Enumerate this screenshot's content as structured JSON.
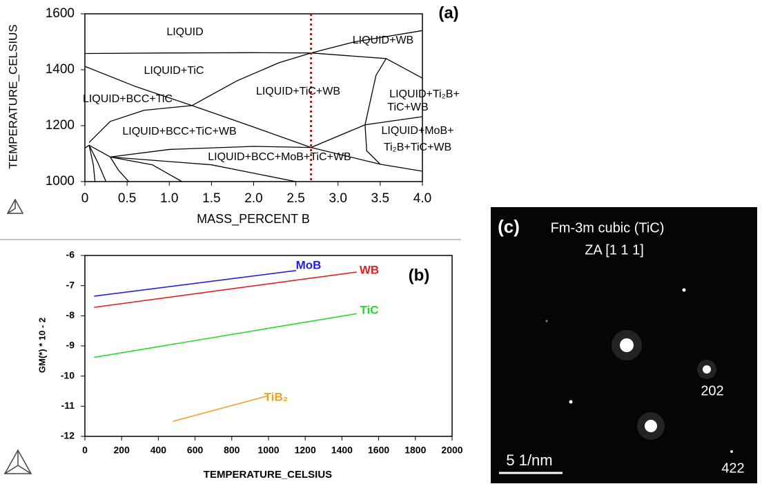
{
  "chart_data": [
    {
      "type": "line",
      "panel": "(a)",
      "x_label": "MASS_PERCENT B",
      "y_label": "TEMPERATURE_CELSIUS",
      "xlim": [
        0,
        4
      ],
      "ylim": [
        1000,
        1600
      ],
      "xticks": [
        0,
        0.5,
        {
          "value": 1,
          "label": "1.0"
        },
        1.5,
        {
          "value": 2,
          "label": "2.0"
        },
        2.5,
        {
          "value": 3,
          "label": "3.0"
        },
        3.5,
        {
          "value": 4,
          "label": "4.0"
        }
      ],
      "yticks": [
        1000,
        1200,
        1400,
        1600
      ],
      "vline": {
        "x": 2.68,
        "color": "#e00000"
      },
      "annotations": [
        "LIQUID",
        "LIQUID+WB",
        "LIQUID+TiC",
        "LIQUID+TiC+WB",
        "LIQUID+Ti₂B+",
        "TiC+WB",
        "LIQUID+BCC+TiC",
        "LIQUID+BCC+TiC+WB",
        "LIQUID+MoB+",
        "Ti₂B+TiC+WB",
        "LIQUID+BCC+MoB+TiC+WB"
      ],
      "series": [
        {
          "color": "#000000",
          "x": [
            0,
            1,
            2,
            2.68,
            3.57
          ],
          "values": [
            1458,
            1460,
            1461,
            1460,
            1440
          ]
        },
        {
          "color": "#000000",
          "x": [
            1.27,
            1.8,
            2.3,
            2.68,
            3.2,
            4
          ],
          "values": [
            1272,
            1360,
            1425,
            1460,
            1500,
            1540
          ]
        },
        {
          "color": "#000000",
          "x": [
            0,
            0.6,
            1.27
          ],
          "values": [
            1412,
            1340,
            1272
          ]
        },
        {
          "color": "#000000",
          "x": [
            1.27,
            2,
            2.68
          ],
          "values": [
            1272,
            1195,
            1122
          ]
        },
        {
          "color": "#000000",
          "x": [
            0.05,
            0.3,
            0.7,
            1.27
          ],
          "values": [
            1140,
            1215,
            1255,
            1272
          ]
        },
        {
          "color": "#000000",
          "x": [
            0.3,
            1,
            2,
            2.68
          ],
          "values": [
            1088,
            1115,
            1126,
            1122
          ]
        },
        {
          "color": "#000000",
          "x": [
            2.68,
            3.32,
            3.45,
            3.57
          ],
          "values": [
            1122,
            1203,
            1380,
            1440
          ]
        },
        {
          "color": "#000000",
          "x": [
            3.32,
            4
          ],
          "values": [
            1203,
            1232
          ]
        },
        {
          "color": "#000000",
          "x": [
            2.68,
            3.5,
            4
          ],
          "values": [
            1122,
            1062,
            1037
          ]
        },
        {
          "color": "#000000",
          "x": [
            3.32,
            3.34,
            3.5
          ],
          "values": [
            1203,
            1110,
            1062
          ]
        },
        {
          "color": "#000000",
          "x": [
            3.57,
            4
          ],
          "values": [
            1440,
            1370
          ]
        },
        {
          "color": "#000000",
          "x": [
            0.3,
            1.5,
            2.5
          ],
          "values": [
            1088,
            1060,
            1000
          ]
        },
        {
          "color": "#000000",
          "x": [
            0.3,
            0.8,
            1.15
          ],
          "values": [
            1088,
            1060,
            1000
          ]
        },
        {
          "color": "#000000",
          "x": [
            0.05,
            0.15,
            0.25
          ],
          "values": [
            1130,
            1070,
            1000
          ]
        },
        {
          "color": "#000000",
          "x": [
            0.05,
            0.1,
            0.12
          ],
          "values": [
            1130,
            1060,
            1000
          ]
        },
        {
          "color": "#000000",
          "x": [
            0.3,
            0.4,
            0.52
          ],
          "values": [
            1088,
            1040,
            1000
          ]
        },
        {
          "color": "#000000",
          "x": [
            0,
            0.05,
            0.3
          ],
          "values": [
            1120,
            1130,
            1088
          ]
        }
      ]
    },
    {
      "type": "line",
      "panel": "(b)",
      "x_label": "TEMPERATURE_CELSIUS",
      "y_label": "GM(*) * 10   - 2",
      "xlim": [
        0,
        2000
      ],
      "ylim": [
        -12,
        -6
      ],
      "xticks": [
        0,
        200,
        400,
        600,
        800,
        1000,
        1200,
        1400,
        1600,
        1800,
        2000
      ],
      "yticks": [
        -12,
        -11,
        -10,
        -9,
        -8,
        -7,
        -6
      ],
      "series": [
        {
          "name": "MoB",
          "color": "#2222dd",
          "x": [
            50,
            1150
          ],
          "values": [
            -7.35,
            -6.5
          ]
        },
        {
          "name": "WB",
          "color": "#e02020",
          "x": [
            50,
            1480
          ],
          "values": [
            -7.72,
            -6.55
          ]
        },
        {
          "name": "TiC",
          "color": "#22dd22",
          "x": [
            50,
            1480
          ],
          "values": [
            -9.38,
            -7.93
          ]
        },
        {
          "name": "TiB₂",
          "color": "#f0a020",
          "x": [
            480,
            1000
          ],
          "values": [
            -11.5,
            -10.65
          ]
        }
      ]
    }
  ],
  "image_c": {
    "panel": "(c)",
    "title": "Fm-3m cubic (TiC)",
    "zone_axis": "ZA [1 1 1]",
    "spot_1": "202",
    "spot_2": "422",
    "scale_bar": "5 1/nm"
  }
}
